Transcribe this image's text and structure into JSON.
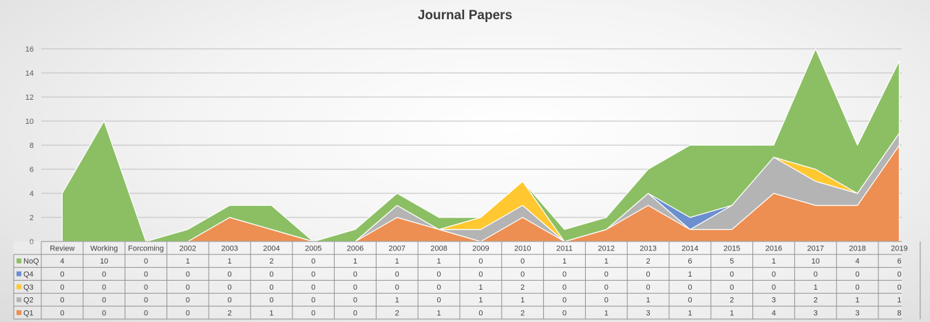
{
  "chart_data": {
    "type": "area",
    "stacked": true,
    "title": "Journal Papers",
    "categories": [
      "Review",
      "Working",
      "Forcoming",
      "2002",
      "2003",
      "2004",
      "2005",
      "2006",
      "2007",
      "2008",
      "2009",
      "2010",
      "2011",
      "2012",
      "2013",
      "2014",
      "2015",
      "2016",
      "2017",
      "2018",
      "2019"
    ],
    "ylim": [
      0,
      16
    ],
    "yticks": [
      0,
      2,
      4,
      6,
      8,
      10,
      12,
      14,
      16
    ],
    "grid": true,
    "legend": "data-table",
    "series": [
      {
        "name": "Q1",
        "color": "#ed8f52",
        "values": [
          0,
          0,
          0,
          0,
          2,
          1,
          0,
          0,
          2,
          1,
          0,
          2,
          0,
          1,
          3,
          1,
          1,
          4,
          3,
          3,
          8
        ]
      },
      {
        "name": "Q2",
        "color": "#b4b4b4",
        "values": [
          0,
          0,
          0,
          0,
          0,
          0,
          0,
          0,
          1,
          0,
          1,
          1,
          0,
          0,
          1,
          0,
          2,
          3,
          2,
          1,
          1
        ]
      },
      {
        "name": "Q3",
        "color": "#ffc830",
        "values": [
          0,
          0,
          0,
          0,
          0,
          0,
          0,
          0,
          0,
          0,
          1,
          2,
          0,
          0,
          0,
          0,
          0,
          0,
          1,
          0,
          0
        ]
      },
      {
        "name": "Q4",
        "color": "#6c8fd0",
        "values": [
          0,
          0,
          0,
          0,
          0,
          0,
          0,
          0,
          0,
          0,
          0,
          0,
          0,
          0,
          0,
          1,
          0,
          0,
          0,
          0,
          0
        ]
      },
      {
        "name": "NoQ",
        "color": "#8cbf64",
        "values": [
          4,
          10,
          0,
          1,
          1,
          2,
          0,
          1,
          1,
          1,
          0,
          0,
          1,
          1,
          2,
          6,
          5,
          1,
          10,
          4,
          6
        ]
      }
    ],
    "table_row_order": [
      "NoQ",
      "Q4",
      "Q3",
      "Q2",
      "Q1"
    ]
  }
}
